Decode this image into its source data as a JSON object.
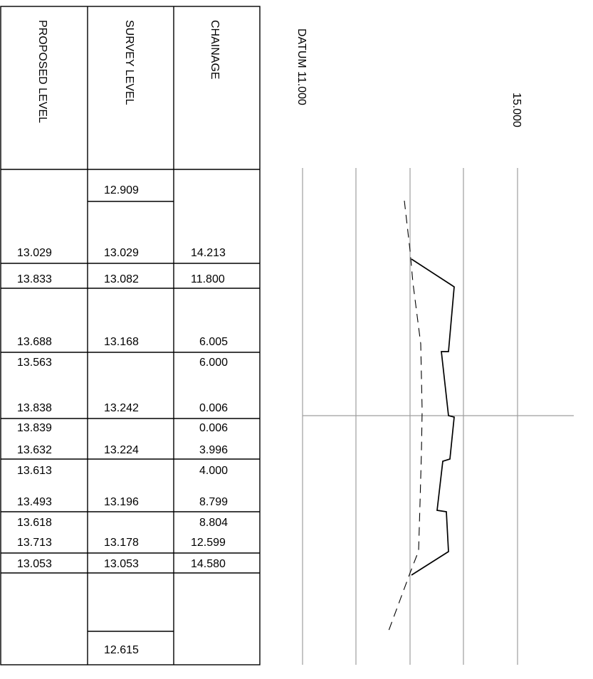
{
  "table": {
    "headers": {
      "proposed": "PROPOSED LEVEL",
      "survey": "SURVEY LEVEL",
      "chainage": "CHAINAGE"
    },
    "rows": [
      {
        "proposed": "",
        "survey": "12.909",
        "chainage": ""
      },
      {
        "proposed": "13.029",
        "survey": "13.029",
        "chainage": "14.213"
      },
      {
        "proposed": "13.833",
        "survey": "13.082",
        "chainage": "11.800"
      },
      {
        "proposed": "13.688",
        "survey": "13.168",
        "chainage": "6.005"
      },
      {
        "proposed": "13.563",
        "survey": "",
        "chainage": "6.000"
      },
      {
        "proposed": "13.838",
        "survey": "13.242",
        "chainage": "0.006"
      },
      {
        "proposed": "13.839",
        "survey": "",
        "chainage": "0.006"
      },
      {
        "proposed": "13.632",
        "survey": "13.224",
        "chainage": "3.996"
      },
      {
        "proposed": "13.613",
        "survey": "",
        "chainage": "4.000"
      },
      {
        "proposed": "13.493",
        "survey": "13.196",
        "chainage": "8.799"
      },
      {
        "proposed": "13.618",
        "survey": "",
        "chainage": "8.804"
      },
      {
        "proposed": "13.713",
        "survey": "13.178",
        "chainage": "12.599"
      },
      {
        "proposed": "13.053",
        "survey": "13.053",
        "chainage": "14.580"
      },
      {
        "proposed": "",
        "survey": "12.615",
        "chainage": ""
      }
    ]
  },
  "plot": {
    "datum_label": "DATUM 11.000",
    "top_label": "15.000",
    "grid_levels": [
      11,
      12,
      13,
      14,
      15
    ],
    "level_range": [
      11,
      15
    ],
    "line_color": "#9e9e9e",
    "proposed_profile": [
      13.029,
      13.833,
      13.688,
      13.563,
      13.838,
      13.839,
      13.632,
      13.613,
      13.493,
      13.618,
      13.713,
      13.053
    ],
    "survey_profile": [
      12.909,
      13.029,
      13.082,
      13.168,
      13.242,
      13.224,
      13.196,
      13.178,
      13.053,
      12.615
    ]
  }
}
